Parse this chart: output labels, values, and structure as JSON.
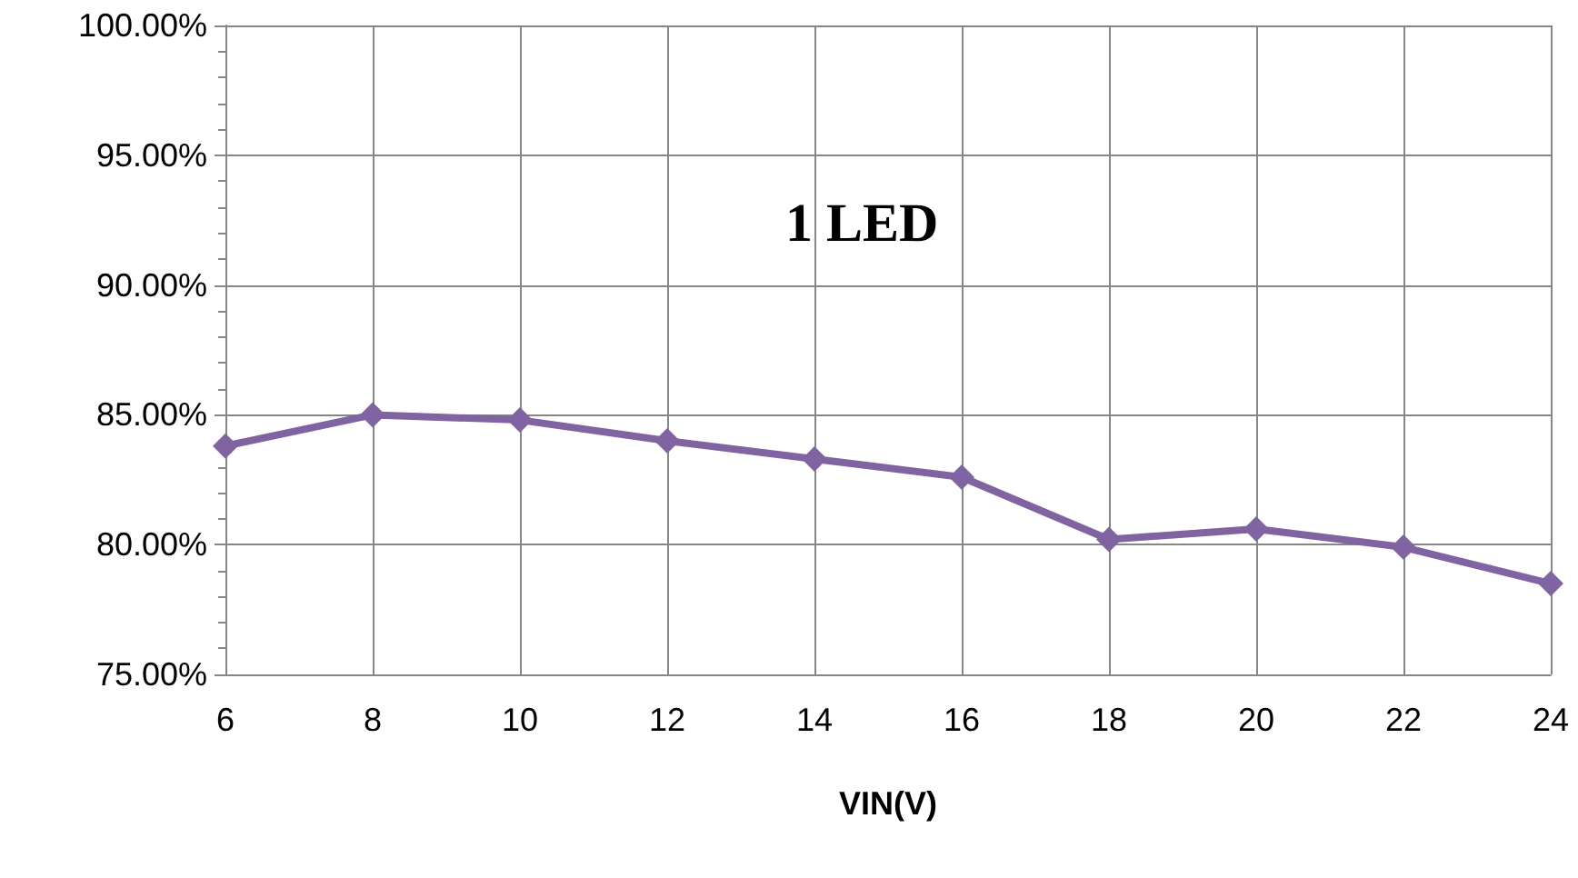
{
  "chart_data": {
    "type": "line",
    "xlabel": "VIN(V)",
    "annotations": [
      "1 LED"
    ],
    "x": [
      6,
      8,
      10,
      12,
      14,
      16,
      18,
      20,
      22,
      24
    ],
    "series": [
      {
        "color": "#8064a2",
        "values": [
          83.8,
          85.0,
          84.8,
          84.0,
          83.3,
          82.6,
          80.2,
          80.6,
          79.9,
          78.5
        ]
      }
    ],
    "xlim": [
      6,
      24
    ],
    "xticks": [
      6,
      8,
      10,
      12,
      14,
      16,
      18,
      20,
      22,
      24
    ],
    "ylim": [
      75,
      100
    ],
    "yticks": [
      {
        "value": 75,
        "label": "75.00%"
      },
      {
        "value": 80,
        "label": "80.00%"
      },
      {
        "value": 85,
        "label": "85.00%"
      },
      {
        "value": 90,
        "label": "90.00%"
      },
      {
        "value": 95,
        "label": "95.00%"
      },
      {
        "value": 100,
        "label": "100.00%"
      }
    ],
    "grid": true,
    "marker": "diamond",
    "line_style": "solid"
  }
}
